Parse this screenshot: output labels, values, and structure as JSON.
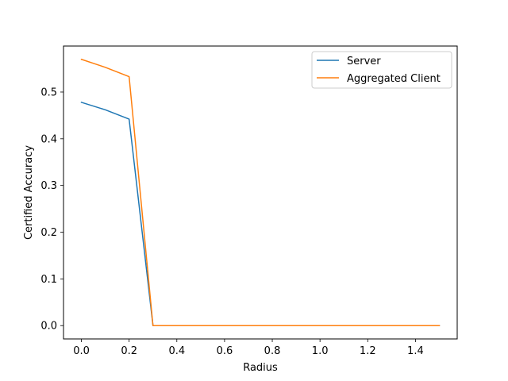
{
  "chart_data": {
    "type": "line",
    "xlabel": "Radius",
    "ylabel": "Certified Accuracy",
    "xlim": [
      -0.075,
      1.575
    ],
    "ylim": [
      -0.0285,
      0.5985
    ],
    "xticks": [
      0.0,
      0.2,
      0.4,
      0.6,
      0.8,
      1.0,
      1.2,
      1.4
    ],
    "xtick_labels": [
      "0.0",
      "0.2",
      "0.4",
      "0.6",
      "0.8",
      "1.0",
      "1.2",
      "1.4"
    ],
    "yticks": [
      0.0,
      0.1,
      0.2,
      0.3,
      0.4,
      0.5
    ],
    "ytick_labels": [
      "0.0",
      "0.1",
      "0.2",
      "0.3",
      "0.4",
      "0.5"
    ],
    "grid": false,
    "legend_position": "top-right",
    "x": [
      0.0,
      0.1,
      0.2,
      0.3,
      0.4,
      0.5,
      0.6,
      0.7,
      0.8,
      0.9,
      1.0,
      1.1,
      1.2,
      1.3,
      1.4,
      1.5
    ],
    "series": [
      {
        "name": "Server",
        "color": "#1f77b4",
        "values": [
          0.478,
          0.462,
          0.442,
          0.0,
          0.0,
          0.0,
          0.0,
          0.0,
          0.0,
          0.0,
          0.0,
          0.0,
          0.0,
          0.0,
          0.0,
          0.0
        ]
      },
      {
        "name": "Aggregated Client",
        "color": "#ff7f0e",
        "values": [
          0.57,
          0.553,
          0.533,
          0.0,
          0.0,
          0.0,
          0.0,
          0.0,
          0.0,
          0.0,
          0.0,
          0.0,
          0.0,
          0.0,
          0.0,
          0.0
        ]
      }
    ]
  }
}
